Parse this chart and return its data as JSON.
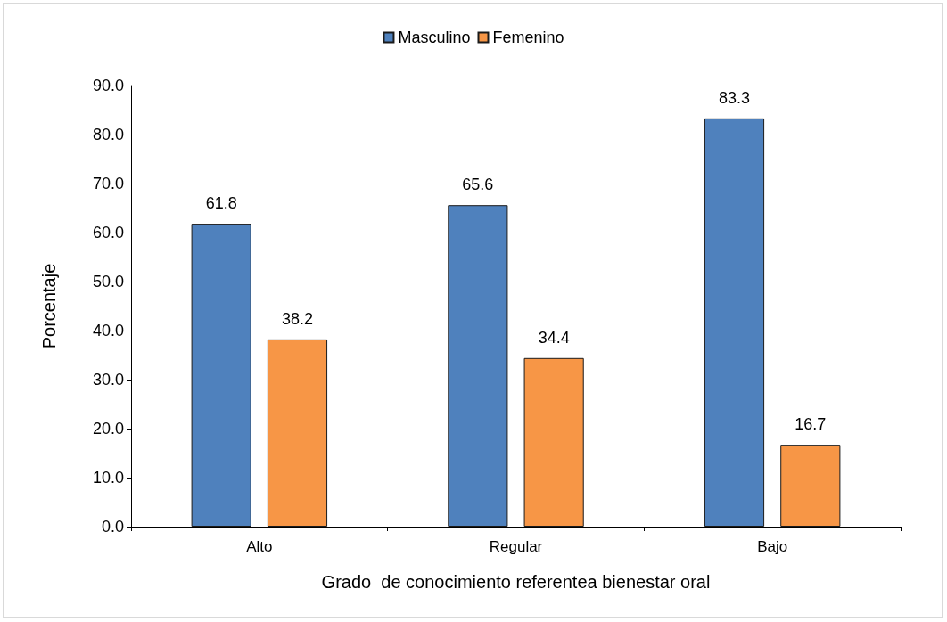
{
  "chart_data": {
    "type": "bar",
    "xlabel": "Grado  de conocimiento referentea bienestar oral",
    "ylabel": "Porcentaje",
    "categories": [
      "Alto",
      "Regular",
      "Bajo"
    ],
    "series": [
      {
        "name": "Masculino",
        "color": "#4f81bd",
        "values": [
          61.8,
          65.6,
          83.3
        ]
      },
      {
        "name": "Femenino",
        "color": "#f79646",
        "values": [
          38.2,
          34.4,
          16.7
        ]
      }
    ],
    "ylim": [
      0,
      90
    ],
    "yticks": [
      {
        "value": 0,
        "label": "0.0"
      },
      {
        "value": 10,
        "label": "10.0"
      },
      {
        "value": 20,
        "label": "20.0"
      },
      {
        "value": 30,
        "label": "30.0"
      },
      {
        "value": 40,
        "label": "40.0"
      },
      {
        "value": 50,
        "label": "50.0"
      },
      {
        "value": 60,
        "label": "60.0"
      },
      {
        "value": 70,
        "label": "70.0"
      },
      {
        "value": 80,
        "label": "80.0"
      },
      {
        "value": 90,
        "label": "90.0"
      }
    ],
    "grid": false,
    "legend": "top",
    "data_labels": true
  }
}
